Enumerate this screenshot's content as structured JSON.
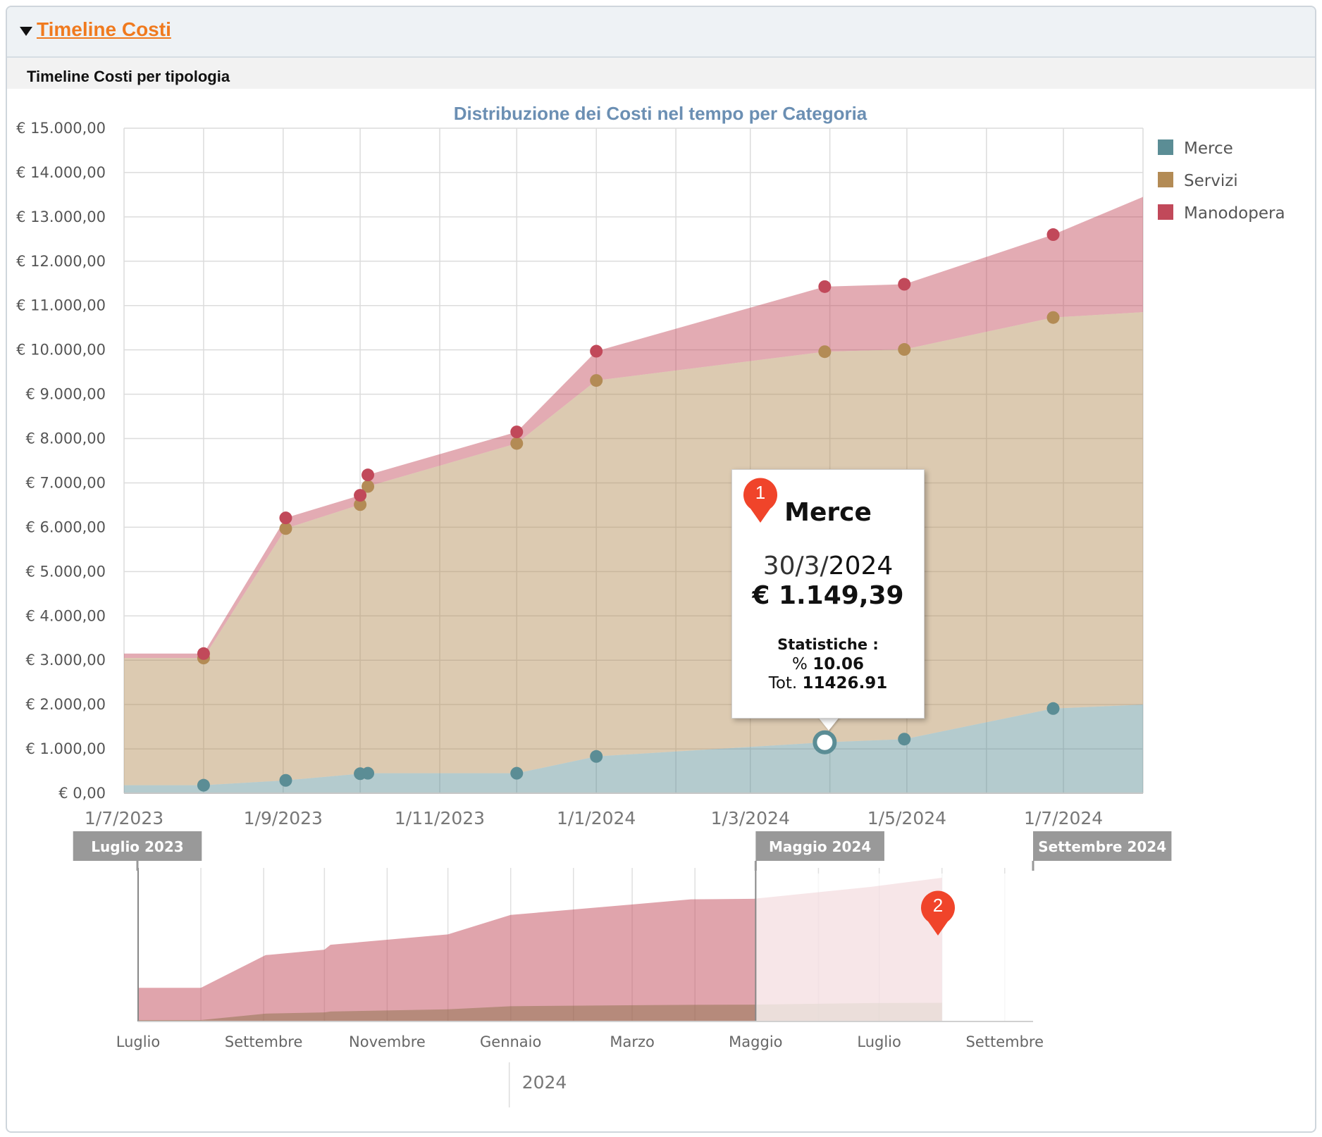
{
  "panel": {
    "title": "Timeline Costi",
    "subtitle": "Timeline Costi per tipologia"
  },
  "chart_data": {
    "type": "area",
    "stacked": true,
    "title": "Distribuzione dei Costi nel tempo per Categoria",
    "y_ticks": [
      "€ 0,00",
      "€ 1.000,00",
      "€ 2.000,00",
      "€ 3.000,00",
      "€ 4.000,00",
      "€ 5.000,00",
      "€ 6.000,00",
      "€ 7.000,00",
      "€ 8.000,00",
      "€ 9.000,00",
      "€ 10.000,00",
      "€ 11.000,00",
      "€ 12.000,00",
      "€ 13.000,00",
      "€ 14.000,00",
      "€ 15.000,00"
    ],
    "ylim": [
      0,
      15000
    ],
    "xlim": [
      "2023-07-01",
      "2024-08-01"
    ],
    "x_ticks": [
      "1/7/2023",
      "1/9/2023",
      "1/11/2023",
      "1/1/2024",
      "1/3/2024",
      "1/5/2024",
      "1/7/2024"
    ],
    "grid": true,
    "legend_position": "right",
    "x": [
      "2023-07-01",
      "2023-08-01",
      "2023-09-02",
      "2023-10-01",
      "2023-10-04",
      "2023-12-01",
      "2024-01-01",
      "2024-03-30",
      "2024-04-30",
      "2024-06-27",
      "2024-08-01"
    ],
    "series": [
      {
        "name": "Merce",
        "color": "#5b8d95",
        "values": [
          180,
          180,
          290,
          440,
          450,
          450,
          830,
          1149,
          1220,
          1910,
          2000
        ]
      },
      {
        "name": "Servizi",
        "color": "#b38b55",
        "values": [
          2870,
          2870,
          5680,
          6070,
          6470,
          7440,
          8480,
          8810,
          8790,
          8820,
          8850
        ]
      },
      {
        "name": "Manodopera",
        "color": "#c1495a",
        "values": [
          100,
          100,
          240,
          210,
          260,
          260,
          660,
          1468,
          1470,
          1870,
          2600
        ]
      }
    ],
    "point_index_start": 1,
    "point_index_end": 9,
    "tooltip": {
      "series": "Merce",
      "date_prefix": "30/3/",
      "date_year": "2024",
      "value": "€ 1.149,39",
      "stats_title": "Statistiche :",
      "pct_label": "%",
      "pct_value": "10.06",
      "tot_label": "Tot.",
      "tot_value": "11426.91",
      "x": "2024-03-30",
      "y": 1149
    },
    "navigator": {
      "x_labels": [
        "Luglio",
        "Settembre",
        "Novembre",
        "Gennaio",
        "Marzo",
        "Maggio",
        "Luglio",
        "Settembre"
      ],
      "x_label_dates": [
        "2023-07-01",
        "2023-09-01",
        "2023-11-01",
        "2024-01-01",
        "2024-03-01",
        "2024-05-01",
        "2024-07-01",
        "2024-09-01"
      ],
      "year_label": "2024",
      "xlim": [
        "2023-07-01",
        "2024-09-15"
      ],
      "range_start_label": "Luglio 2023",
      "range_end_label": "Maggio 2024",
      "range_max_label": "Settembre 2024",
      "selection_end_date": "2024-05-01"
    },
    "callouts": [
      "1",
      "2"
    ]
  }
}
